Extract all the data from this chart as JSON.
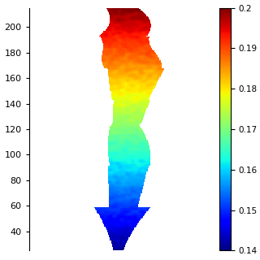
{
  "colormap": "jet",
  "vmin": 0.14,
  "vmax": 0.2,
  "colorbar_ticks": [
    0.14,
    0.15,
    0.16,
    0.17,
    0.18,
    0.19,
    0.2
  ],
  "colorbar_ticklabels": [
    "0.14",
    "0.15",
    "0.16",
    "0.17",
    "0.18",
    "0.19",
    "0.2"
  ],
  "xlim": [
    0,
    230
  ],
  "ylim": [
    25,
    215
  ],
  "yticks": [
    40,
    60,
    80,
    100,
    120,
    140,
    160,
    180,
    200
  ],
  "background_color": "#ffffff",
  "field_seed": 42,
  "nx": 200,
  "ny": 400,
  "noise_std": 0.004
}
